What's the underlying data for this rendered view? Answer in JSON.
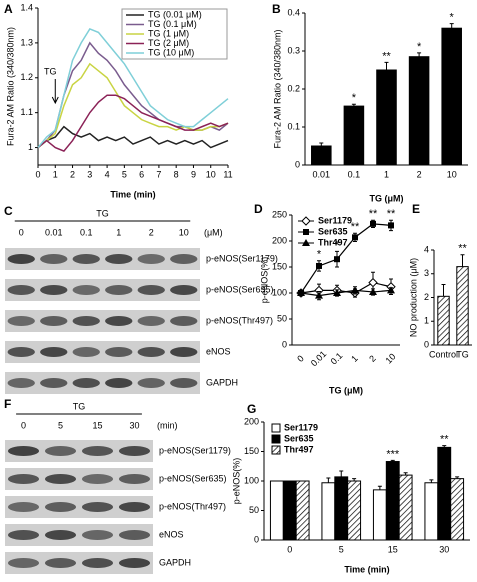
{
  "chart_data": [
    {
      "type": "line",
      "panel_label": "A",
      "y_label": "Fura-2 AM Ratio (340/380nm)",
      "x_label": "Time (min)",
      "x": [
        0,
        0.5,
        1,
        1.5,
        2,
        2.5,
        3,
        3.5,
        4,
        4.5,
        5,
        5.5,
        6,
        6.5,
        7,
        7.5,
        8,
        8.5,
        9,
        9.5,
        10,
        10.5,
        11
      ],
      "xlim": [
        0,
        11
      ],
      "xticks": [
        0,
        1,
        2,
        3,
        4,
        5,
        6,
        7,
        8,
        9,
        10,
        11
      ],
      "ylim": [
        0.95,
        1.4
      ],
      "yticks": [
        1,
        1.1,
        1.2,
        1.3,
        1.4
      ],
      "legend": "top-right",
      "annotation": {
        "text": "TG",
        "x": 1
      },
      "series": [
        {
          "name": "TG (0.01 μM)",
          "color": "#222222",
          "values": [
            1.0,
            1.02,
            1.03,
            1.06,
            1.04,
            1.03,
            1.04,
            1.02,
            1.03,
            1.02,
            1.03,
            1.01,
            1.02,
            1.03,
            1.01,
            1.02,
            1.01,
            1.02,
            1.01,
            1.02,
            1.0,
            1.01,
            1.02
          ]
        },
        {
          "name": "TG (0.1 μM)",
          "color": "#7a5c8e",
          "values": [
            1.0,
            1.02,
            1.05,
            1.15,
            1.22,
            1.25,
            1.3,
            1.27,
            1.25,
            1.22,
            1.18,
            1.15,
            1.12,
            1.1,
            1.08,
            1.07,
            1.06,
            1.06,
            1.05,
            1.05,
            1.06,
            1.05,
            1.07
          ]
        },
        {
          "name": "TG (1 μM)",
          "color": "#c9d443",
          "values": [
            1.0,
            1.02,
            1.04,
            1.12,
            1.18,
            1.2,
            1.24,
            1.22,
            1.2,
            1.16,
            1.12,
            1.1,
            1.08,
            1.07,
            1.06,
            1.06,
            1.05,
            1.06,
            1.05,
            1.05,
            1.06,
            1.06,
            1.07
          ]
        },
        {
          "name": "TG (2 μM)",
          "color": "#8b2257",
          "values": [
            1.0,
            1.02,
            1.0,
            0.99,
            1.02,
            1.06,
            1.1,
            1.13,
            1.15,
            1.15,
            1.14,
            1.12,
            1.1,
            1.09,
            1.08,
            1.07,
            1.06,
            1.05,
            1.05,
            1.06,
            1.07,
            1.06,
            1.07
          ]
        },
        {
          "name": "TG (10 μM)",
          "color": "#7fcfd8",
          "values": [
            1.0,
            1.03,
            1.05,
            1.15,
            1.25,
            1.3,
            1.34,
            1.33,
            1.3,
            1.27,
            1.24,
            1.2,
            1.16,
            1.12,
            1.1,
            1.08,
            1.07,
            1.06,
            1.06,
            1.08,
            1.1,
            1.12,
            1.14
          ]
        }
      ]
    },
    {
      "type": "bar",
      "panel_label": "B",
      "y_label": "Fura-2 AM Ratio (340/380nm)",
      "x_label": "TG (μM)",
      "categories": [
        "0.01",
        "0.1",
        "1",
        "2",
        "10"
      ],
      "values": [
        0.05,
        0.155,
        0.25,
        0.285,
        0.36
      ],
      "errors": [
        0.008,
        0.005,
        0.02,
        0.01,
        0.012
      ],
      "color": "#000000",
      "ylim": [
        0,
        0.4
      ],
      "yticks": [
        0,
        0.1,
        0.2,
        0.3,
        0.4
      ],
      "annotations": [
        {
          "category": "0.1",
          "text": "*"
        },
        {
          "category": "1",
          "text": "**"
        },
        {
          "category": "2",
          "text": "*"
        },
        {
          "category": "10",
          "text": "*"
        }
      ]
    },
    {
      "type": "line",
      "panel_label": "D",
      "y_label": "p-eNOS(%)",
      "x_label": "TG (μM)",
      "categories": [
        "0",
        "0.01",
        "0.1",
        "1",
        "2",
        "10"
      ],
      "ylim": [
        0,
        250
      ],
      "yticks": [
        0,
        50,
        100,
        150,
        200,
        250
      ],
      "legend": "top-left",
      "series": [
        {
          "name": "Ser1179",
          "color": "#000000",
          "marker": "diamond",
          "values": [
            100,
            105,
            105,
            100,
            120,
            112
          ],
          "errors": [
            5,
            12,
            10,
            8,
            20,
            15
          ]
        },
        {
          "name": "Ser635",
          "color": "#000000",
          "marker": "square",
          "values": [
            100,
            152,
            165,
            207,
            233,
            230
          ],
          "errors": [
            5,
            10,
            15,
            8,
            7,
            10
          ],
          "annotations": [
            {
              "category": "0.01",
              "text": "*"
            },
            {
              "category": "0.1",
              "text": "*"
            },
            {
              "category": "1",
              "text": "**"
            },
            {
              "category": "2",
              "text": "**"
            },
            {
              "category": "10",
              "text": "**"
            }
          ]
        },
        {
          "name": "Thr497",
          "color": "#000000",
          "marker": "triangle",
          "values": [
            100,
            95,
            100,
            105,
            102,
            105
          ],
          "errors": [
            5,
            8,
            6,
            7,
            6,
            5
          ]
        }
      ]
    },
    {
      "type": "bar",
      "panel_label": "E",
      "y_label": "NO production (μM)",
      "categories": [
        "Control",
        "TG"
      ],
      "values": [
        2.05,
        3.3
      ],
      "errors": [
        0.5,
        0.5
      ],
      "color": "#ffffff",
      "hatch": true,
      "ylim": [
        0,
        4
      ],
      "yticks": [
        0,
        1,
        2,
        3,
        4
      ],
      "annotations": [
        {
          "category": "TG",
          "text": "**"
        }
      ]
    },
    {
      "type": "bar",
      "panel_label": "G",
      "y_label": "p-eNOS(%)",
      "x_label": "Time (min)",
      "categories": [
        "0",
        "5",
        "15",
        "30"
      ],
      "ylim": [
        0,
        200
      ],
      "yticks": [
        0,
        50,
        100,
        150,
        200
      ],
      "legend": "top-left",
      "series": [
        {
          "name": "Ser1179",
          "color": "#ffffff",
          "values": [
            100,
            97,
            85,
            97
          ],
          "errors": [
            0,
            8,
            6,
            5
          ]
        },
        {
          "name": "Ser635",
          "color": "#000000",
          "values": [
            100,
            107,
            133,
            157
          ],
          "errors": [
            0,
            10,
            2,
            3
          ],
          "annotations": [
            {
              "category": "15",
              "text": "***"
            },
            {
              "category": "30",
              "text": "**"
            }
          ]
        },
        {
          "name": "Thr497",
          "color": "#ffffff",
          "hatch": true,
          "values": [
            100,
            100,
            110,
            104
          ],
          "errors": [
            0,
            4,
            4,
            3
          ]
        }
      ]
    }
  ],
  "blots": [
    {
      "panel_label": "C",
      "treatment": "TG",
      "lanes": [
        "0",
        "0.01",
        "0.1",
        "1",
        "2",
        "10"
      ],
      "unit": "(μM)",
      "rows": [
        "p-eNOS(Ser1179)",
        "p-eNOS(Ser635)",
        "p-eNOS(Thr497)",
        "eNOS",
        "GAPDH"
      ]
    },
    {
      "panel_label": "F",
      "treatment": "TG",
      "lanes": [
        "0",
        "5",
        "15",
        "30"
      ],
      "unit": "(min)",
      "rows": [
        "p-eNOS(Ser1179)",
        "p-eNOS(Ser635)",
        "p-eNOS(Thr497)",
        "eNOS",
        "GAPDH"
      ]
    }
  ]
}
